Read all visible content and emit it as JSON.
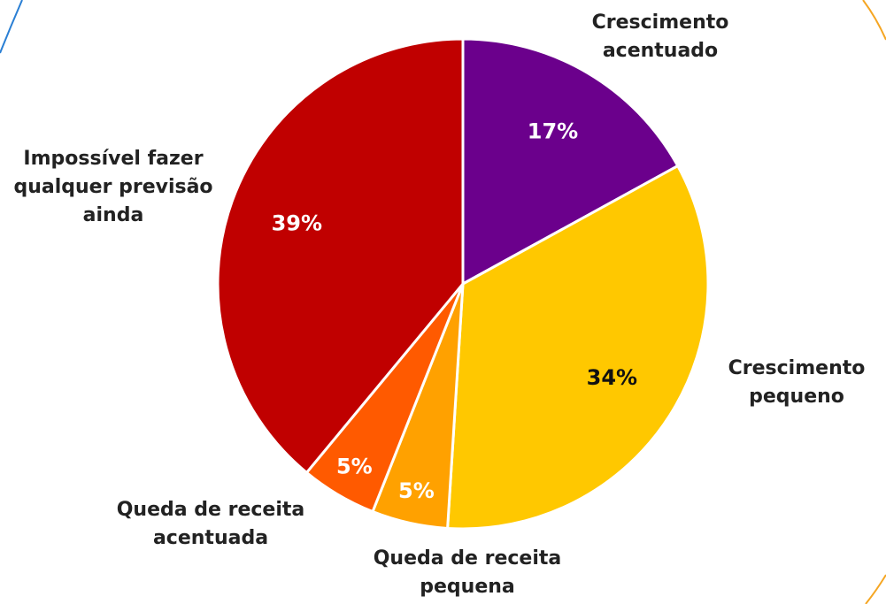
{
  "chart_data": {
    "type": "pie",
    "categories": [
      "Crescimento acentuado",
      "Crescimento pequeno",
      "Queda de receita pequena",
      "Queda de receita acentuada",
      "Impossível fazer qualquer previsão ainda"
    ],
    "values": [
      17,
      34,
      5,
      5,
      39
    ],
    "value_labels": [
      "17%",
      "34%",
      "5%",
      "5%",
      "39%"
    ],
    "colors": [
      "#6b008c",
      "#ffc800",
      "#ffa100",
      "#ff5a00",
      "#c00000"
    ],
    "label_colors": [
      "#ffffff",
      "#111111",
      "#ffffff",
      "#ffffff",
      "#ffffff"
    ]
  }
}
